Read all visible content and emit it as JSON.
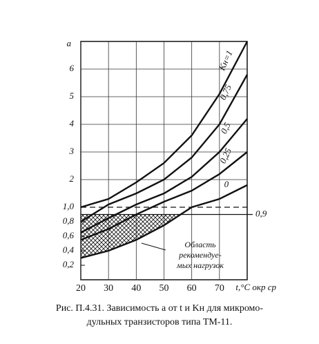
{
  "chart_data": {
    "type": "line",
    "y_label": "a",
    "x_label": "t,°C окр ср",
    "x": [
      20,
      30,
      40,
      50,
      60,
      70,
      80
    ],
    "series": [
      {
        "name": "Kн=1",
        "color": "#111111",
        "values": [
          1.0,
          1.3,
          1.9,
          2.6,
          3.6,
          5.1,
          7.0
        ]
      },
      {
        "name": "0,75",
        "color": "#111111",
        "values": [
          0.8,
          1.1,
          1.5,
          2.0,
          2.8,
          4.0,
          5.8
        ]
      },
      {
        "name": "0,5",
        "color": "#111111",
        "values": [
          0.65,
          0.85,
          1.1,
          1.5,
          2.1,
          3.0,
          4.2
        ]
      },
      {
        "name": "0,25",
        "color": "#111111",
        "values": [
          0.55,
          0.7,
          0.9,
          1.2,
          1.6,
          2.2,
          3.0
        ]
      },
      {
        "name": "0",
        "color": "#111111",
        "values": [
          0.3,
          0.4,
          0.55,
          0.75,
          1.0,
          1.3,
          1.8
        ]
      }
    ],
    "xlim": [
      20,
      80
    ],
    "xticks": [
      20,
      30,
      40,
      50,
      60,
      70
    ],
    "ylim": [
      0,
      7
    ],
    "yticks": [
      {
        "value": 0.2,
        "label": "0,2"
      },
      {
        "value": 0.4,
        "label": "0,4"
      },
      {
        "value": 0.6,
        "label": "0,6"
      },
      {
        "value": 0.8,
        "label": "0,8"
      },
      {
        "value": 1.0,
        "label": "1,0"
      },
      2,
      3,
      4,
      5,
      6
    ],
    "dashed_line": 1.0,
    "threshold_line": {
      "value": 0.9,
      "label": "0,9"
    },
    "region_label": [
      "Область",
      "рекомендуе-",
      "мых нагрузок"
    ],
    "caption": [
      "Рис. П.4.31. Зависимость a от t и Kн для микромо-",
      "дульных транзисторов типа ТМ-11."
    ]
  }
}
